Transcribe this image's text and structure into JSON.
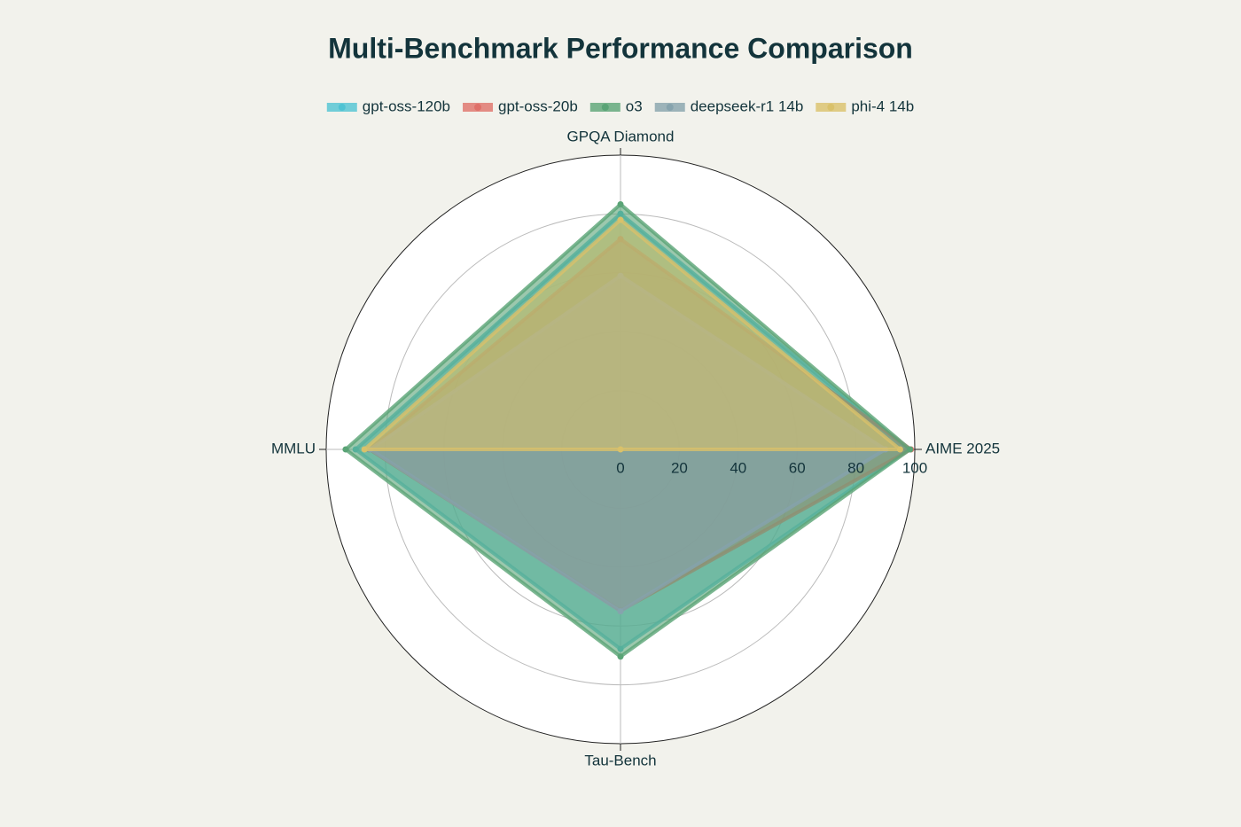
{
  "chart_data": {
    "type": "radar",
    "title": "Multi-Benchmark Performance Comparison",
    "categories": [
      "AIME 2025",
      "GPQA Diamond",
      "MMLU",
      "Tau-Bench"
    ],
    "series": [
      {
        "name": "gpt-oss-120b",
        "color": "#4fc3d3",
        "values": [
          97.9,
          80.1,
          90.0,
          67.8
        ]
      },
      {
        "name": "gpt-oss-20b",
        "color": "#df7069",
        "values": [
          98.7,
          71.5,
          85.3,
          54.8
        ]
      },
      {
        "name": "o3",
        "color": "#5aa476",
        "values": [
          98.4,
          83.3,
          93.4,
          70.4
        ]
      },
      {
        "name": "deepseek-r1 14b",
        "color": "#86a3ad",
        "values": [
          90,
          59,
          85,
          55
        ]
      },
      {
        "name": "phi-4 14b",
        "color": "#d9c16a",
        "values": [
          95,
          78,
          87,
          0
        ]
      }
    ],
    "rlim": [
      0,
      100
    ],
    "rticks": [
      0,
      20,
      40,
      60,
      80,
      100
    ]
  }
}
